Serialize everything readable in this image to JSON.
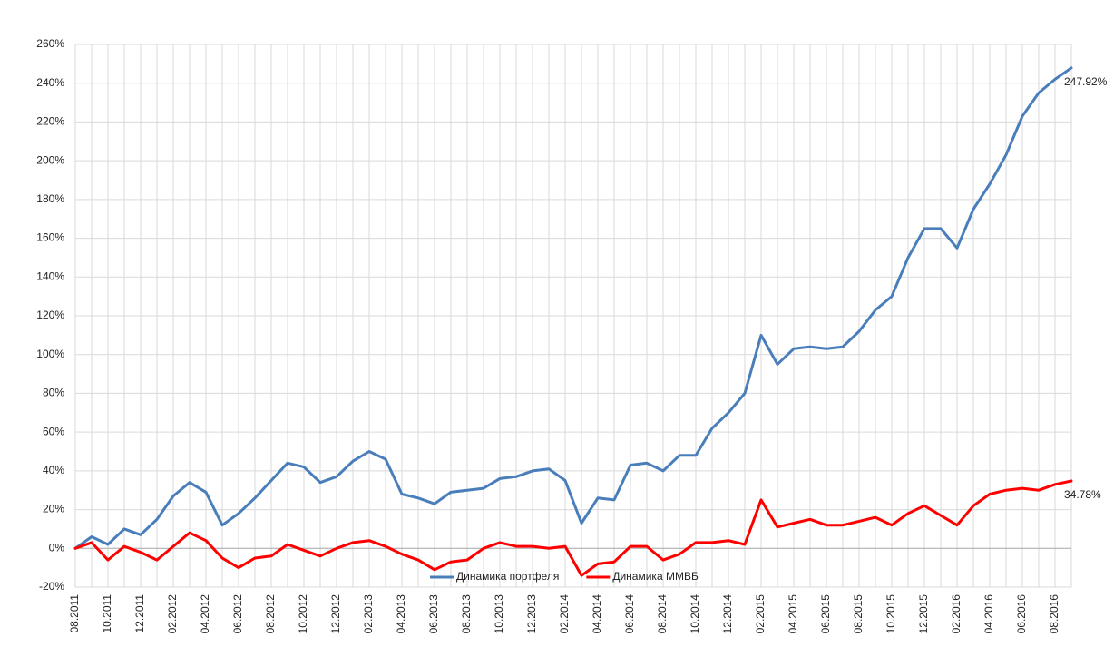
{
  "chart_data": {
    "type": "line",
    "categories": [
      "08.2011",
      null,
      "10.2011",
      null,
      "12.2011",
      null,
      "02.2012",
      null,
      "04.2012",
      null,
      "06.2012",
      null,
      "08.2012",
      null,
      "10.2012",
      null,
      "12.2012",
      null,
      "02.2013",
      null,
      "04.2013",
      null,
      "06.2013",
      null,
      "08.2013",
      null,
      "10.2013",
      null,
      "12.2013",
      null,
      "02.2014",
      null,
      "04.2014",
      null,
      "06.2014",
      null,
      "08.2014",
      null,
      "10.2014",
      null,
      "12.2014",
      null,
      "02.2015",
      null,
      "04.2015",
      null,
      "06.2015",
      null,
      "08.2015",
      null,
      "10.2015",
      null,
      "12.2015",
      null,
      "02.2016",
      null,
      "04.2016",
      null,
      "06.2016",
      null,
      "08.2016",
      null
    ],
    "series": [
      {
        "name": "Динамика портфеля",
        "color": "#4a7ebb",
        "values": [
          0,
          6,
          2,
          10,
          7,
          15,
          27,
          34,
          29,
          12,
          18,
          26,
          35,
          44,
          42,
          34,
          37,
          45,
          50,
          46,
          28,
          26,
          23,
          29,
          30,
          31,
          36,
          37,
          40,
          41,
          35,
          13,
          26,
          25,
          43,
          44,
          40,
          48,
          48,
          62,
          70,
          80,
          110,
          95,
          103,
          104,
          103,
          104,
          112,
          123,
          130,
          150,
          165,
          165,
          155,
          175,
          188,
          203,
          223,
          235,
          242,
          247.92
        ],
        "value_labels": [
          null,
          null,
          null,
          null,
          null,
          null,
          null,
          null,
          null,
          null,
          null,
          null,
          null,
          null,
          null,
          null,
          null,
          null,
          null,
          null,
          null,
          null,
          null,
          null,
          null,
          null,
          null,
          null,
          null,
          null,
          null,
          null,
          null,
          null,
          null,
          null,
          null,
          null,
          null,
          null,
          null,
          null,
          null,
          null,
          null,
          null,
          null,
          null,
          null,
          null,
          null,
          null,
          null,
          null,
          null,
          null,
          null,
          null,
          null,
          null,
          null,
          "247.92%"
        ]
      },
      {
        "name": "Динамика ММВБ",
        "color": "#ff0000",
        "values": [
          0,
          3,
          -6,
          1,
          -2,
          -6,
          1,
          8,
          4,
          -5,
          -10,
          -5,
          -4,
          2,
          -1,
          -4,
          0,
          3,
          4,
          1,
          -3,
          -6,
          -11,
          -7,
          -6,
          0,
          3,
          1,
          1,
          0,
          1,
          -14,
          -8,
          -7,
          1,
          1,
          -6,
          -3,
          3,
          3,
          4,
          2,
          25,
          11,
          13,
          15,
          12,
          12,
          14,
          16,
          12,
          18,
          22,
          17,
          12,
          22,
          28,
          30,
          31,
          30,
          33,
          34.78
        ],
        "value_labels": [
          null,
          null,
          null,
          null,
          null,
          null,
          null,
          null,
          null,
          null,
          null,
          null,
          null,
          null,
          null,
          null,
          null,
          null,
          null,
          null,
          null,
          null,
          null,
          null,
          null,
          null,
          null,
          null,
          null,
          null,
          null,
          null,
          null,
          null,
          null,
          null,
          null,
          null,
          null,
          null,
          null,
          null,
          null,
          null,
          null,
          null,
          null,
          null,
          null,
          null,
          null,
          null,
          null,
          null,
          null,
          null,
          null,
          null,
          null,
          null,
          null,
          "34.78%"
        ]
      }
    ],
    "ylim": [
      -20,
      260
    ],
    "yticks": [
      {
        "value": -20,
        "label": "-20%"
      },
      {
        "value": 0,
        "label": "0%"
      },
      {
        "value": 20,
        "label": "20%"
      },
      {
        "value": 40,
        "label": "40%"
      },
      {
        "value": 60,
        "label": "60%"
      },
      {
        "value": 80,
        "label": "80%"
      },
      {
        "value": 100,
        "label": "100%"
      },
      {
        "value": 120,
        "label": "120%"
      },
      {
        "value": 140,
        "label": "140%"
      },
      {
        "value": 160,
        "label": "160%"
      },
      {
        "value": 180,
        "label": "180%"
      },
      {
        "value": 200,
        "label": "200%"
      },
      {
        "value": 220,
        "label": "220%"
      },
      {
        "value": 240,
        "label": "240%"
      },
      {
        "value": 260,
        "label": "260%"
      }
    ],
    "grid": true,
    "legend": "bottom"
  }
}
